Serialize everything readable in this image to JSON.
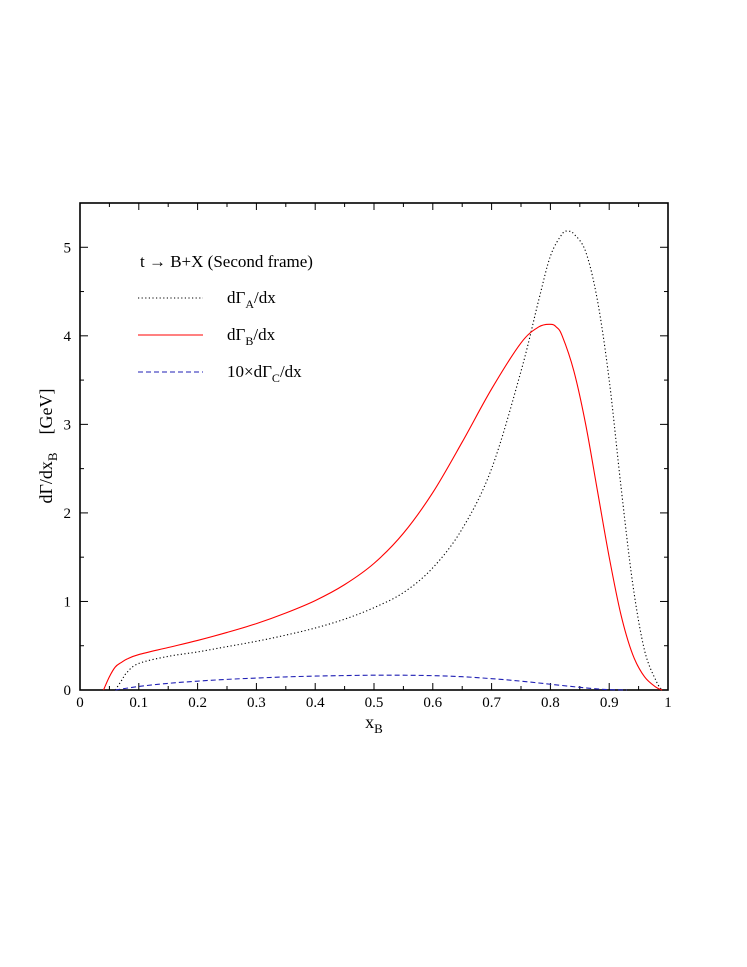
{
  "chart_data": {
    "type": "line",
    "title": "",
    "xlabel": "x_B",
    "ylabel": "dΓ/dx_B    [GeV]",
    "xlim": [
      0,
      1
    ],
    "ylim": [
      0,
      5.5
    ],
    "x_ticks": [
      0,
      0.1,
      0.2,
      0.3,
      0.4,
      0.5,
      0.6,
      0.7,
      0.8,
      0.9,
      1
    ],
    "x_tick_labels": [
      "0",
      "0.1",
      "0.2",
      "0.3",
      "0.4",
      "0.5",
      "0.6",
      "0.7",
      "0.8",
      "0.9",
      "1"
    ],
    "y_ticks": [
      0,
      1,
      2,
      3,
      4,
      5
    ],
    "y_tick_labels": [
      "0",
      "1",
      "2",
      "3",
      "4",
      "5"
    ],
    "grid": false,
    "legend_position": "top-left",
    "legend_header": "t → B+X (Second frame)",
    "series": [
      {
        "name": "dΓ_A/dx",
        "style": "dotted",
        "color": "#000000",
        "x": [
          0.06,
          0.07,
          0.08,
          0.1,
          0.15,
          0.2,
          0.25,
          0.3,
          0.35,
          0.4,
          0.45,
          0.5,
          0.55,
          0.6,
          0.65,
          0.7,
          0.75,
          0.78,
          0.8,
          0.82,
          0.83,
          0.84,
          0.86,
          0.88,
          0.9,
          0.92,
          0.94,
          0.96,
          0.98,
          0.99
        ],
        "y": [
          0.0,
          0.1,
          0.2,
          0.3,
          0.38,
          0.43,
          0.49,
          0.55,
          0.62,
          0.7,
          0.8,
          0.93,
          1.1,
          1.38,
          1.82,
          2.5,
          3.6,
          4.4,
          4.9,
          5.15,
          5.18,
          5.15,
          4.95,
          4.4,
          3.5,
          2.3,
          1.2,
          0.45,
          0.1,
          0.0
        ]
      },
      {
        "name": "dΓ_B/dx",
        "style": "solid",
        "color": "#ff0000",
        "x": [
          0.04,
          0.05,
          0.06,
          0.07,
          0.08,
          0.1,
          0.15,
          0.2,
          0.25,
          0.3,
          0.35,
          0.4,
          0.45,
          0.5,
          0.55,
          0.6,
          0.65,
          0.7,
          0.75,
          0.78,
          0.8,
          0.81,
          0.82,
          0.84,
          0.86,
          0.88,
          0.9,
          0.92,
          0.94,
          0.96,
          0.98,
          0.99
        ],
        "y": [
          0.0,
          0.15,
          0.26,
          0.31,
          0.35,
          0.4,
          0.48,
          0.56,
          0.65,
          0.75,
          0.87,
          1.01,
          1.19,
          1.43,
          1.77,
          2.23,
          2.8,
          3.4,
          3.92,
          4.1,
          4.13,
          4.1,
          4.0,
          3.6,
          3.0,
          2.25,
          1.5,
          0.85,
          0.4,
          0.15,
          0.03,
          0.0
        ]
      },
      {
        "name": "10×dΓ_C/dx",
        "style": "dashed",
        "color": "#1f1fb4",
        "x": [
          0.06,
          0.1,
          0.15,
          0.2,
          0.25,
          0.3,
          0.35,
          0.4,
          0.45,
          0.5,
          0.55,
          0.6,
          0.65,
          0.7,
          0.75,
          0.8,
          0.85,
          0.88,
          0.9,
          0.93
        ],
        "y": [
          0.0,
          0.04,
          0.075,
          0.1,
          0.12,
          0.135,
          0.148,
          0.157,
          0.163,
          0.167,
          0.167,
          0.162,
          0.15,
          0.128,
          0.1,
          0.065,
          0.03,
          0.012,
          0.004,
          0.0
        ]
      }
    ]
  }
}
